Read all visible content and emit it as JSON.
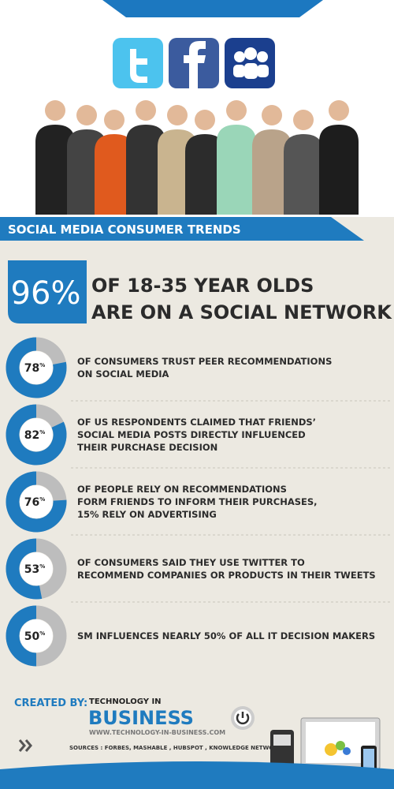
{
  "banner": {
    "title": "SOCIAL MEDIA CONSUMER TRENDS"
  },
  "headline": {
    "value": 96,
    "value_label": "96%",
    "lines": [
      "OF 18-35 YEAR OLDS",
      "ARE ON A SOCIAL NETWORK"
    ]
  },
  "stats": [
    {
      "value": 78,
      "unit": "%",
      "lines": [
        "OF CONSUMERS TRUST PEER RECOMMENDATIONS",
        "ON SOCIAL MEDIA"
      ]
    },
    {
      "value": 82,
      "unit": "%",
      "lines": [
        "OF US RESPONDENTS CLAIMED THAT FRIENDS’",
        "SOCIAL MEDIA POSTS DIRECTLY INFLUENCED",
        "THEIR PURCHASE DECISION"
      ]
    },
    {
      "value": 76,
      "unit": "%",
      "lines": [
        "OF PEOPLE RELY ON RECOMMENDATIONS",
        "FORM FRIENDS TO INFORM THEIR PURCHASES,",
        "15% RELY ON ADVERTISING"
      ]
    },
    {
      "value": 53,
      "unit": "%",
      "lines": [
        "OF CONSUMERS SAID THEY USE TWITTER TO",
        "RECOMMEND COMPANIES OR PRODUCTS IN THEIR TWEETS"
      ]
    },
    {
      "value": 50,
      "unit": "%",
      "lines": [
        "SM INFLUENCES NEARLY  50% OF ALL IT DECISION MAKERS"
      ]
    }
  ],
  "footer": {
    "created_by": "CREATED BY:",
    "brand_top": "TECHNOLOGY IN",
    "brand": "BUSINESS",
    "url": "WWW.TECHNOLOGY-IN-BUSINESS.COM",
    "sources": "SOURCES : FORBES, MASHABLE , HUBSPOT , KNOWLEDGE NETWORKS"
  }
}
